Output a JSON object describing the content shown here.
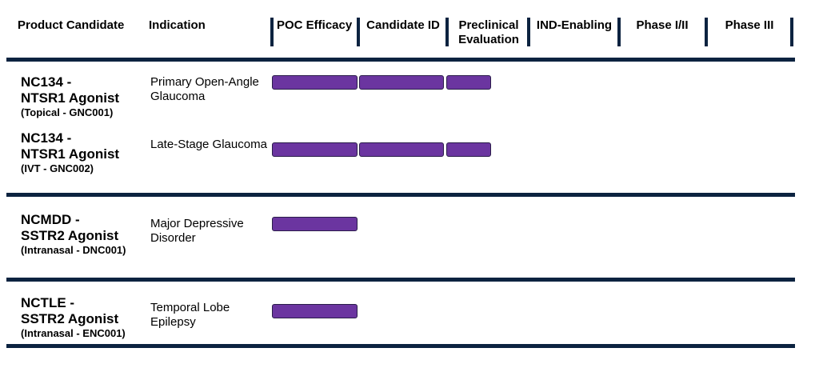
{
  "headers": {
    "product": "Product Candidate",
    "indication": "Indication",
    "phases": [
      "POC Efficacy",
      "Candidate ID",
      "Preclinical Evaluation",
      "IND-Enabling",
      "Phase I/II",
      "Phase III"
    ]
  },
  "rows": [
    {
      "name_line1": "NC134 -",
      "name_line2": "NTSR1 Agonist",
      "sub": "(Topical - GNC001)",
      "indication": "Primary Open-Angle Glaucoma",
      "stages_completed": 2.55
    },
    {
      "name_line1": "NC134 -",
      "name_line2": "NTSR1 Agonist",
      "sub": "(IVT - GNC002)",
      "indication": "Late-Stage Glaucoma",
      "stages_completed": 2.55
    },
    {
      "name_line1": "NCMDD -",
      "name_line2": "SSTR2 Agonist",
      "sub": "(Intranasal - DNC001)",
      "indication": "Major Depressive Disorder",
      "stages_completed": 1
    },
    {
      "name_line1": "NCTLE -",
      "name_line2": "SSTR2 Agonist",
      "sub": "(Intranasal - ENC001)",
      "indication": "Temporal Lobe Epilepsy",
      "stages_completed": 1
    }
  ],
  "colors": {
    "bar": "#6b35a0",
    "bar_border": "#2a1d4a",
    "rule": "#0c2340"
  },
  "chart_data": {
    "type": "bar",
    "orientation": "horizontal",
    "categories": [
      "NC134 (Topical - GNC001)",
      "NC134 (IVT - GNC002)",
      "NCMDD (Intranasal - DNC001)",
      "NCTLE (Intranasal - ENC001)"
    ],
    "x_categories": [
      "POC Efficacy",
      "Candidate ID",
      "Preclinical Evaluation",
      "IND-Enabling",
      "Phase I/II",
      "Phase III"
    ],
    "values": [
      2.55,
      2.55,
      1,
      1
    ],
    "xlim": [
      0,
      6
    ]
  }
}
